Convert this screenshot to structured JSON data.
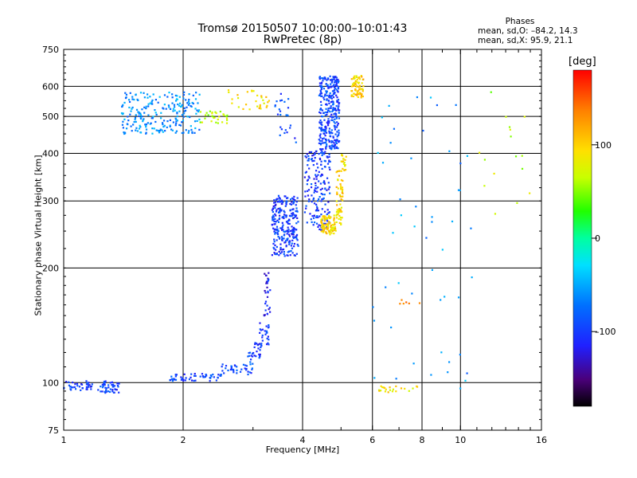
{
  "header": {
    "title_line1": "Tromsø 20150507 10:00:00–10:01:43",
    "title_line2": "RwPretec (8p)"
  },
  "stats": {
    "heading": "Phases",
    "line_o": "mean, sd,O: –84.2, 14.3",
    "line_x": "mean, sd,X:  95.9, 21.1"
  },
  "colorbar": {
    "title": "[deg]",
    "range": [
      -180,
      180
    ],
    "ticks": [
      100,
      0,
      -100
    ],
    "tick_labels": [
      "100",
      "0",
      "–100"
    ]
  },
  "chart_data": {
    "type": "scatter",
    "title": "Tromsø 20150507 10:00:00–10:01:43",
    "subtitle": "RwPretec (8p)",
    "xlabel": "Frequency [MHz]",
    "ylabel": "Stationary phase Virtual Height [km]",
    "xscale": "log",
    "yscale": "log",
    "xlim": [
      1,
      16
    ],
    "ylim": [
      75,
      750
    ],
    "xticks": [
      1,
      2,
      4,
      6,
      8,
      10,
      16
    ],
    "xtick_labels": [
      "1",
      "2",
      "4",
      "6",
      "8",
      "10",
      "16"
    ],
    "yticks": [
      75,
      100,
      200,
      300,
      400,
      500,
      600,
      750
    ],
    "ytick_labels": [
      "75",
      "100",
      "200",
      "300",
      "400",
      "500",
      "600",
      "750"
    ],
    "grid": true,
    "color_encoding": "phase [deg]",
    "point_groups": [
      {
        "x": [
          1.0,
          1.18
        ],
        "h": [
          95,
          101
        ],
        "n": 40,
        "phase": -100
      },
      {
        "x": [
          1.22,
          1.38
        ],
        "h": [
          94,
          101
        ],
        "n": 45,
        "phase": -100
      },
      {
        "x": [
          1.85,
          2.5
        ],
        "h": [
          101,
          106
        ],
        "n": 55,
        "phase": -95
      },
      {
        "x": [
          2.5,
          3.0
        ],
        "h": [
          105,
          112
        ],
        "n": 35,
        "phase": -90
      },
      {
        "x": [
          3.0,
          3.15
        ],
        "h": [
          116,
          128
        ],
        "n": 22,
        "phase": -105
      },
      {
        "x": [
          2.9,
          3.0
        ],
        "h": [
          112,
          120
        ],
        "n": 10,
        "phase": -100
      },
      {
        "x": [
          3.1,
          3.3
        ],
        "h": [
          125,
          145
        ],
        "n": 25,
        "phase": -105
      },
      {
        "x": [
          3.2,
          3.32
        ],
        "h": [
          150,
          200
        ],
        "n": 30,
        "phase": -110
      },
      {
        "x": [
          3.35,
          3.9
        ],
        "h": [
          215,
          310
        ],
        "n": 260,
        "phase": -100
      },
      {
        "x": [
          4.4,
          4.95
        ],
        "h": [
          410,
          640
        ],
        "n": 320,
        "phase": -95
      },
      {
        "x": [
          4.05,
          4.7
        ],
        "h": [
          250,
          410
        ],
        "n": 180,
        "phase": -100
      },
      {
        "x": [
          4.45,
          4.85
        ],
        "h": [
          245,
          275
        ],
        "n": 90,
        "phase": 95
      },
      {
        "x": [
          4.85,
          5.05
        ],
        "h": [
          260,
          360
        ],
        "n": 60,
        "phase": 95
      },
      {
        "x": [
          5.0,
          5.15
        ],
        "h": [
          360,
          400
        ],
        "n": 20,
        "phase": 90
      },
      {
        "x": [
          5.3,
          5.7
        ],
        "h": [
          560,
          640
        ],
        "n": 70,
        "phase": 100
      },
      {
        "x": [
          1.4,
          2.2
        ],
        "h": [
          450,
          580
        ],
        "n": 230,
        "phase": -60
      },
      {
        "x": [
          2.2,
          2.6
        ],
        "h": [
          480,
          520
        ],
        "n": 30,
        "phase": 60
      },
      {
        "x": [
          2.6,
          3.3
        ],
        "h": [
          520,
          590
        ],
        "n": 30,
        "phase": 95
      },
      {
        "x": [
          3.4,
          3.7
        ],
        "h": [
          500,
          580
        ],
        "n": 16,
        "phase": -90
      },
      {
        "x": [
          3.5,
          3.85
        ],
        "h": [
          420,
          480
        ],
        "n": 10,
        "phase": -100
      },
      {
        "x": [
          6.2,
          7.8
        ],
        "h": [
          94,
          98
        ],
        "n": 22,
        "phase": 90
      },
      {
        "x": [
          7.0,
          8.0
        ],
        "h": [
          160,
          165
        ],
        "n": 6,
        "phase": 135
      },
      {
        "x": [
          6.0,
          11.0
        ],
        "h": [
          95,
          600
        ],
        "n": 50,
        "phase": -60
      },
      {
        "x": [
          11.0,
          16.0
        ],
        "h": [
          250,
          600
        ],
        "n": 16,
        "phase": 60
      }
    ]
  }
}
